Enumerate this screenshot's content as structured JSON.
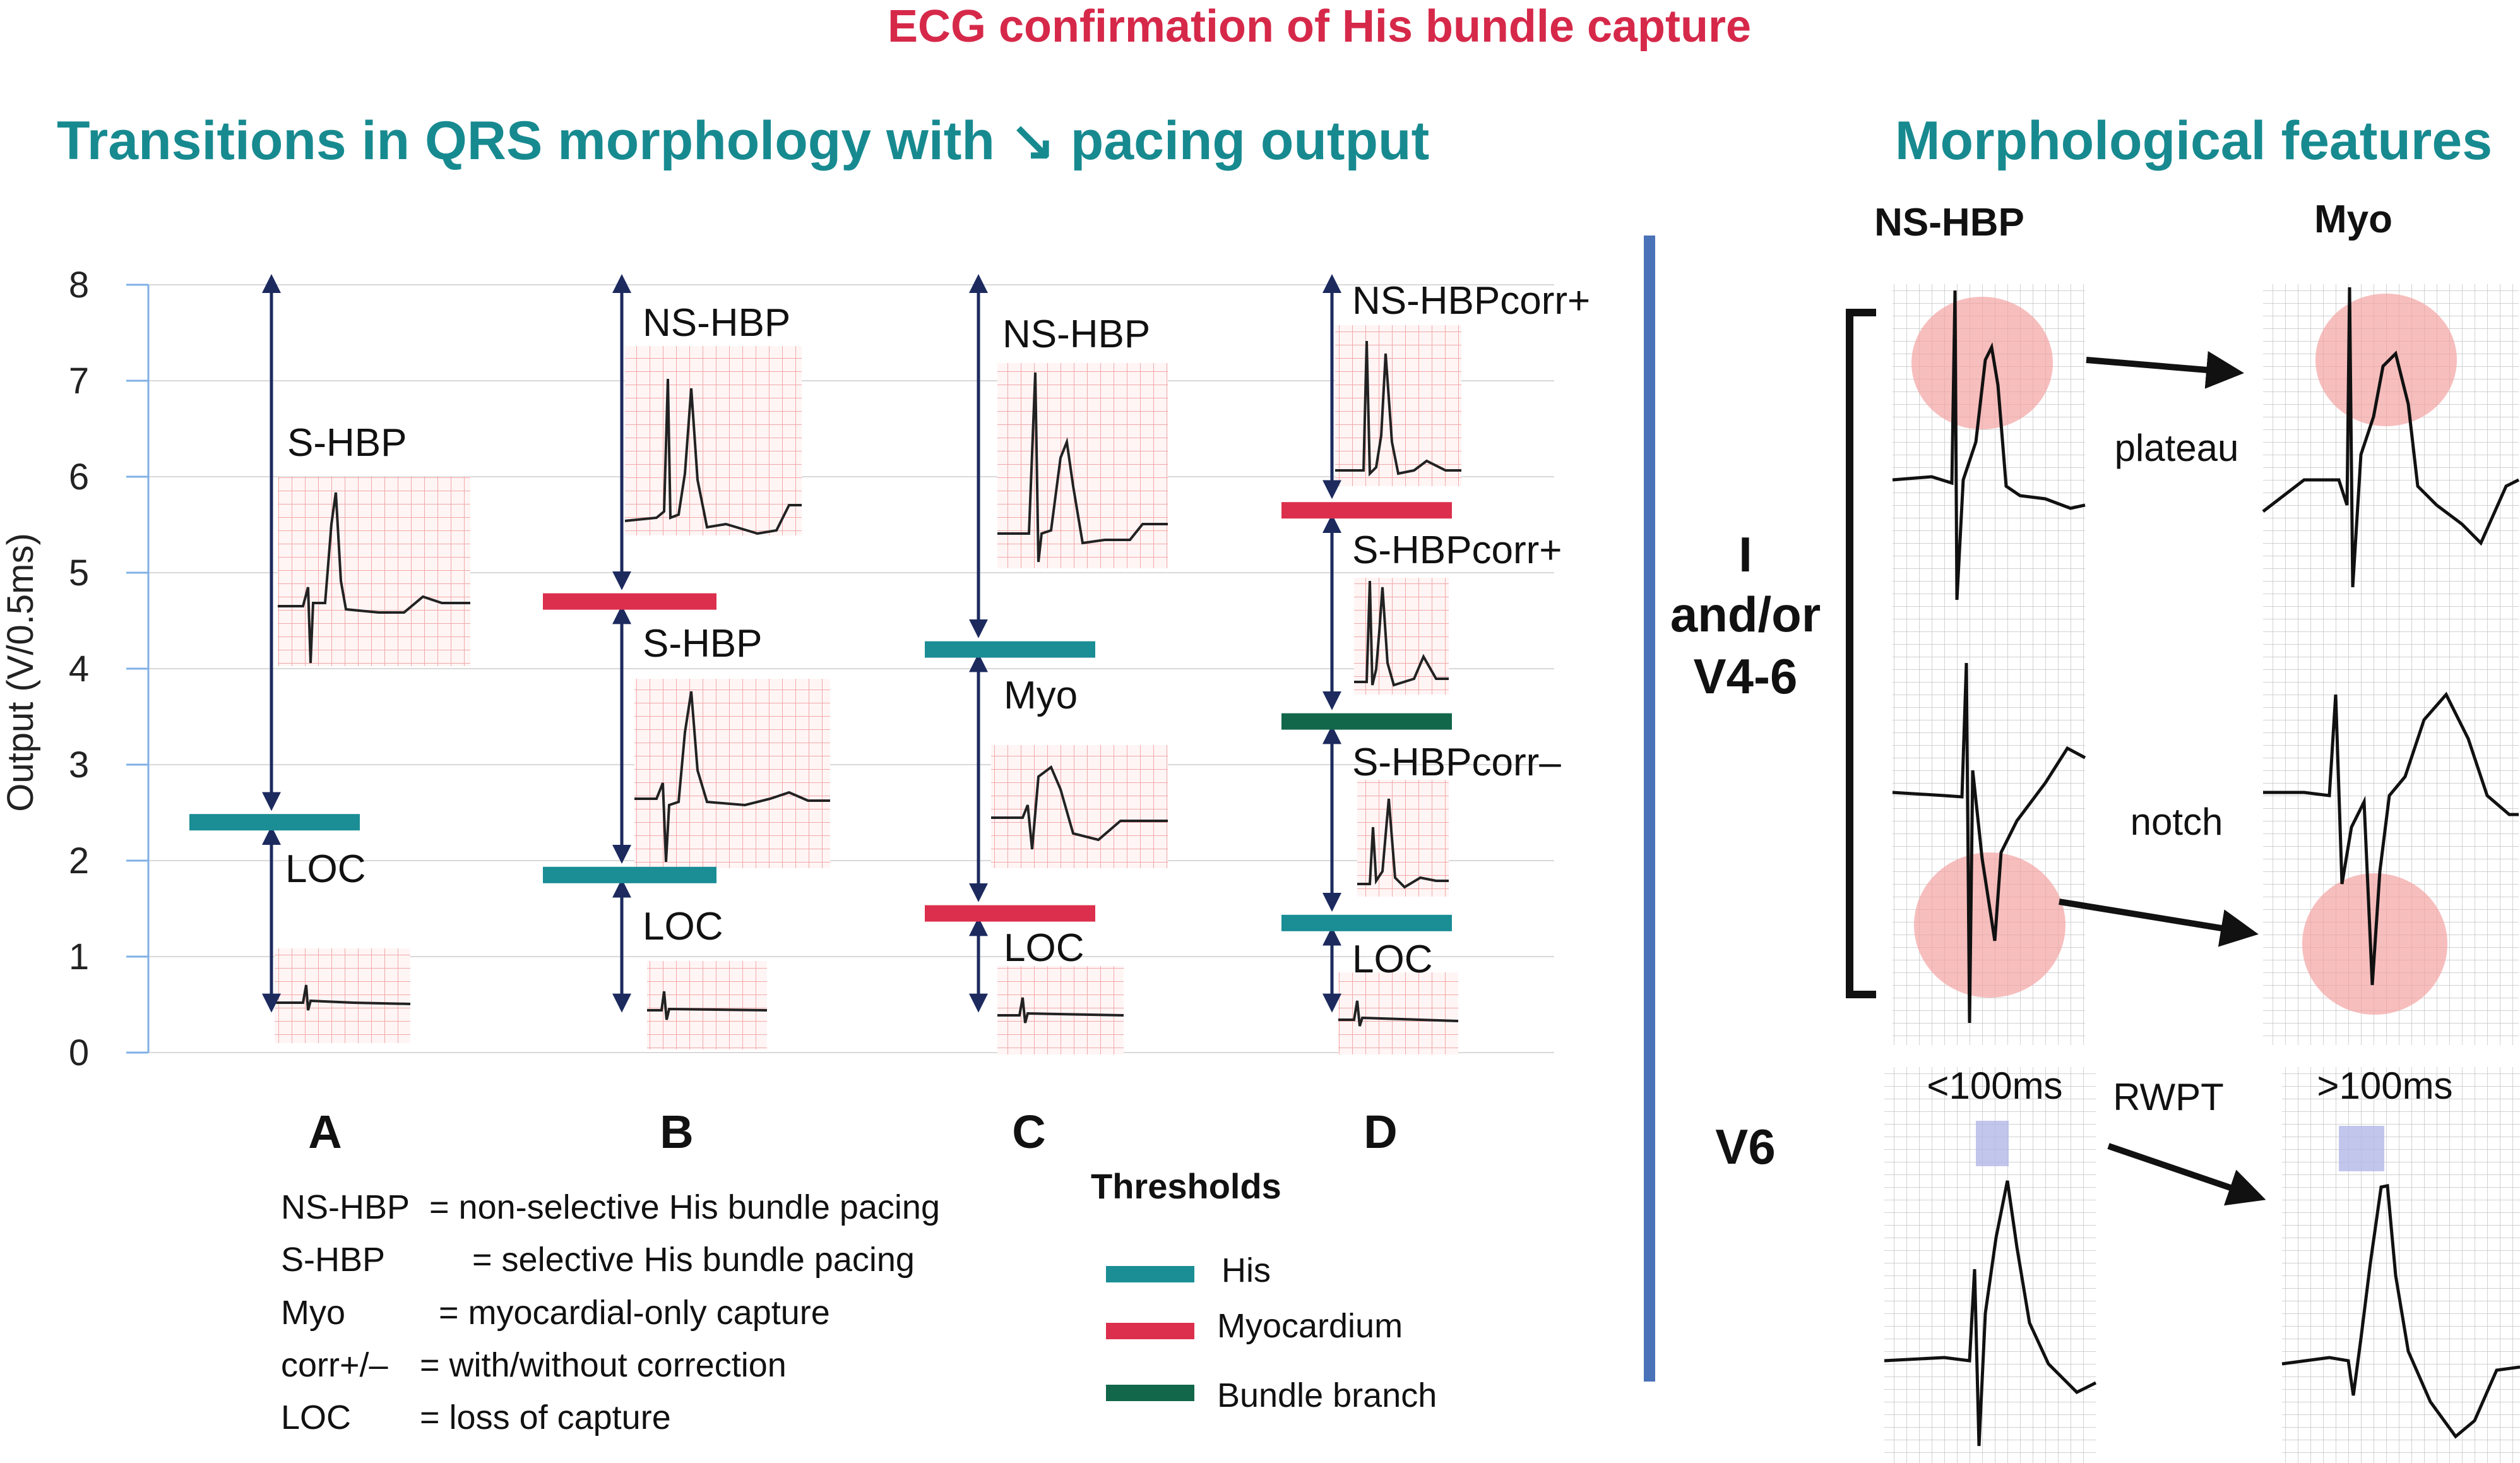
{
  "title": "ECG confirmation of His bundle capture",
  "left_title": "Transitions in QRS morphology with ↘ pacing output",
  "right_title": "Morphological features",
  "y_axis": {
    "label": "Output (V/0.5ms)",
    "min": 0,
    "max": 8,
    "ticks": [
      "0",
      "1",
      "2",
      "3",
      "4",
      "5",
      "6",
      "7",
      "8"
    ]
  },
  "panels": {
    "A": {
      "letter": "A",
      "upper": "S-HBP",
      "lower": "LOC"
    },
    "B": {
      "letter": "B",
      "top": "NS-HBP",
      "middle": "S-HBP",
      "lower": "LOC"
    },
    "C": {
      "letter": "C",
      "top": "NS-HBP",
      "middle": "Myo",
      "lower": "LOC"
    },
    "D": {
      "letter": "D",
      "top": "NS-HBPcorr+",
      "second": "S-HBPcorr+",
      "third": "S-HBPcorr–",
      "lower": "LOC"
    }
  },
  "thresholds_data": [
    {
      "panel": "A",
      "type": "His",
      "output": 2.4
    },
    {
      "panel": "B",
      "type": "Myocardium",
      "output": 4.7
    },
    {
      "panel": "B",
      "type": "His",
      "output": 1.85
    },
    {
      "panel": "C",
      "type": "His",
      "output": 4.2
    },
    {
      "panel": "C",
      "type": "Myocardium",
      "output": 1.45
    },
    {
      "panel": "D",
      "type": "Myocardium",
      "output": 5.65
    },
    {
      "panel": "D",
      "type": "Bundle branch",
      "output": 3.45
    },
    {
      "panel": "D",
      "type": "His",
      "output": 1.35
    }
  ],
  "abbreviations": [
    {
      "abbr": "NS-HBP",
      "def": "= non-selective His bundle pacing"
    },
    {
      "abbr": "S-HBP",
      "def": "= selective His bundle pacing"
    },
    {
      "abbr": "Myo",
      "def": "= myocardial-only capture"
    },
    {
      "abbr": "corr+/–",
      "def": "= with/without correction"
    },
    {
      "abbr": "LOC",
      "def": "= loss of capture"
    }
  ],
  "thresholds_legend": {
    "title": "Thresholds",
    "items": [
      {
        "label": "His",
        "color": "#1a8d95"
      },
      {
        "label": "Myocardium",
        "color": "#dc2f4d"
      },
      {
        "label": "Bundle branch",
        "color": "#12664a"
      }
    ]
  },
  "morphology": {
    "col_left": "NS-HBP",
    "col_right": "Myo",
    "lead_group_1": [
      "I",
      "and/or",
      "V4-6"
    ],
    "lead_v6": "V6",
    "features": [
      "plateau",
      "notch",
      "RWPT"
    ],
    "rwpt_left": "<100ms",
    "rwpt_right": ">100ms"
  },
  "colors": {
    "his": "#1a8d95",
    "myocardium": "#dc2f4d",
    "bundle_branch": "#12664a",
    "arrow": "#1c2a5e",
    "divider": "#4a72b8",
    "title": "#d6294a",
    "subtitle": "#178a90"
  }
}
